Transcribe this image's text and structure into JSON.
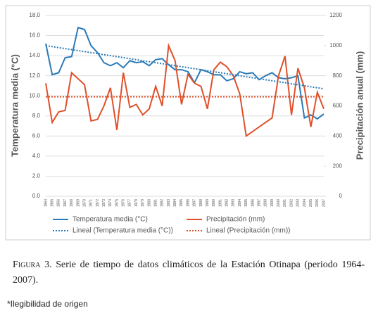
{
  "chart_data": {
    "type": "line",
    "y_label": "Temperatura media (°C)",
    "y2_label": "Precipitación anual (mm)",
    "categories": [
      "1964",
      "1965",
      "1966",
      "1967",
      "1968",
      "1969",
      "1970",
      "1971",
      "1972",
      "1973",
      "1974",
      "1975",
      "1976",
      "1977",
      "1978",
      "1979",
      "1980",
      "1981",
      "1982",
      "1983",
      "1984",
      "1985",
      "1986",
      "1987",
      "1988",
      "1989",
      "1990",
      "1991",
      "1992",
      "1993",
      "1994",
      "1995",
      "1996",
      "1997",
      "1998",
      "1999",
      "2000",
      "2001",
      "2002",
      "2003",
      "2004",
      "2005",
      "2006",
      "2007"
    ],
    "series": [
      {
        "name": "Temperatura media (°C)",
        "color": "#2a7ab8",
        "axis": "y",
        "values": [
          15.2,
          12.1,
          12.3,
          13.8,
          13.9,
          16.8,
          16.6,
          15.0,
          14.3,
          13.3,
          13.0,
          13.3,
          12.8,
          13.5,
          13.3,
          13.4,
          13.0,
          13.6,
          13.7,
          13.1,
          12.6,
          12.6,
          12.4,
          11.3,
          12.6,
          12.4,
          12.1,
          12.1,
          11.5,
          11.7,
          12.4,
          12.2,
          12.3,
          11.6,
          12.0,
          12.3,
          11.8,
          11.7,
          11.8,
          12.0,
          7.8,
          8.1,
          7.7,
          8.2
        ]
      },
      {
        "name": "Precipitación (mm)",
        "color": "#e0502a",
        "axis": "y2",
        "values": [
          750,
          490,
          560,
          570,
          820,
          780,
          740,
          500,
          510,
          600,
          720,
          440,
          820,
          590,
          610,
          540,
          580,
          730,
          600,
          1000,
          900,
          610,
          810,
          750,
          730,
          580,
          840,
          890,
          860,
          800,
          680,
          400,
          430,
          460,
          490,
          520,
          800,
          930,
          540,
          850,
          720,
          460,
          690,
          580
        ]
      }
    ],
    "trendlines": [
      {
        "name": "Lineal (Temperatura media (°C))",
        "color": "#2a7ab8",
        "axis": "y",
        "start": 15.0,
        "end": 10.7
      },
      {
        "name": "Lineal (Precipitación (mm))",
        "color": "#e0502a",
        "axis": "y2",
        "start": 660,
        "end": 660
      }
    ],
    "ylim": [
      0,
      18
    ],
    "yticks": [
      {
        "value": 0,
        "label": "0.0"
      },
      {
        "value": 2,
        "label": "2.0"
      },
      {
        "value": 4,
        "label": "4.0"
      },
      {
        "value": 6,
        "label": "6.0"
      },
      {
        "value": 8,
        "label": "8.0"
      },
      {
        "value": 10,
        "label": "10.0"
      },
      {
        "value": 12,
        "label": "12.0"
      },
      {
        "value": 14,
        "label": "14.0"
      },
      {
        "value": 16,
        "label": "16.0"
      },
      {
        "value": 18,
        "label": "18.0"
      }
    ],
    "y2lim": [
      0,
      1200
    ],
    "y2ticks": [
      0,
      200,
      400,
      600,
      800,
      1000,
      1200
    ],
    "grid": true
  },
  "caption": {
    "label": "Figura",
    "text": "3. Serie de tiempo de datos climáticos de la Estación Otinapa (periodo 1964-2007)."
  },
  "footnote": "*Ilegibilidad de origen"
}
